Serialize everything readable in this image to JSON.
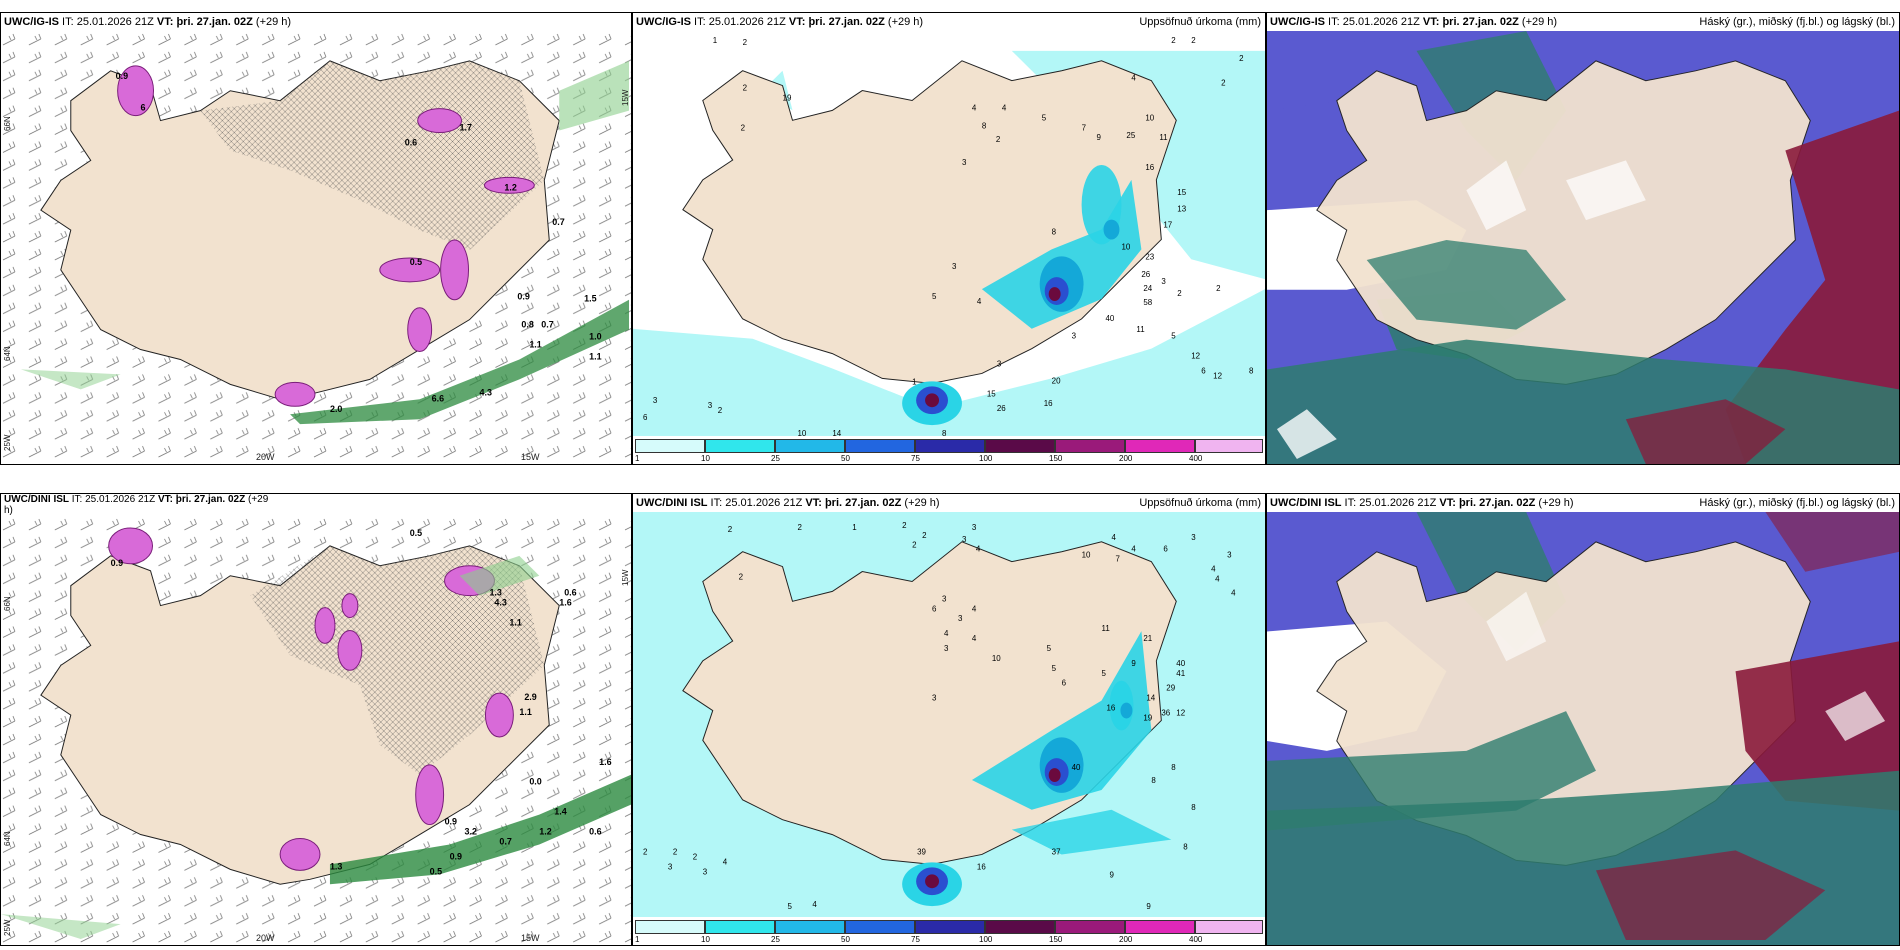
{
  "panels": [
    {
      "id": "top-left",
      "title_model": "UWC/IG-IS",
      "it_label": " IT: ",
      "it_value": "25.01.2026 21Z",
      "vt_label": " VT: ",
      "vt_value": "þri. 27.jan. 02Z",
      "lead": " (+29 h)",
      "right_title": "",
      "lon_labels": [
        "20W",
        "15W"
      ],
      "lat_labels": [
        "66N",
        "64N",
        "25W",
        "15W"
      ],
      "values": [
        "0.9",
        "6",
        "1.7",
        "0.6",
        "1.2",
        "0.7",
        "0.5",
        "0.9",
        "1.5",
        "1.1",
        "1.0",
        "0.8",
        "0.7",
        "1.1",
        "6.6",
        "2.0",
        "4.3"
      ]
    },
    {
      "id": "top-mid",
      "title_model": "UWC/IG-IS",
      "it_label": " IT: ",
      "it_value": "25.01.2026 21Z",
      "vt_label": " VT: ",
      "vt_value": "þri. 27.jan. 02Z",
      "lead": " (+29 h)",
      "right_title": "Uppsöfnuð úrkoma (mm)",
      "values": [
        "2",
        "2",
        "2",
        "1",
        "2",
        "2",
        "19",
        "2",
        "4",
        "4",
        "8",
        "5",
        "3",
        "2",
        "7",
        "9",
        "4",
        "2",
        "25",
        "10",
        "11",
        "16",
        "15",
        "13",
        "17",
        "23",
        "26",
        "24",
        "58",
        "40",
        "11",
        "2",
        "2",
        "3",
        "8",
        "10",
        "5",
        "12",
        "6",
        "8",
        "12",
        "3",
        "5",
        "4",
        "3",
        "3",
        "6",
        "3",
        "2",
        "10",
        "14",
        "15",
        "26",
        "16",
        "20",
        "3",
        "1",
        "8"
      ],
      "colorbar": [
        "1",
        "10",
        "25",
        "50",
        "75",
        "100",
        "150",
        "200",
        "400"
      ]
    },
    {
      "id": "top-right",
      "title_model": "UWC/IG-IS",
      "it_label": " IT: ",
      "it_value": "25.01.2026 21Z",
      "vt_label": " VT: ",
      "vt_value": "þri. 27.jan. 02Z",
      "lead": " (+29 h)",
      "right_title": "Háský (gr.), miðský (fj.bl.) og lágský (bl.)"
    },
    {
      "id": "bottom-left",
      "title_model": "UWC/DINI ISL",
      "it_label": " IT: ",
      "it_value": "25.01.2026 21Z",
      "vt_label": " VT: ",
      "vt_value": "þri. 27.jan. 02Z",
      "lead": " (+29",
      "lead2": "h)",
      "right_title": "",
      "lon_labels": [
        "20W",
        "15W"
      ],
      "lat_labels": [
        "66N",
        "64N",
        "25W",
        "15W"
      ],
      "values": [
        "0.5",
        "0.9",
        "1.3",
        "0.6",
        "1.6",
        "1.1",
        "2.9",
        "1.1",
        "0.9",
        "1.4",
        "1.2",
        "0.6",
        "0.7",
        "3.2",
        "0.9",
        "0.5",
        "1.3",
        "0.0",
        "1.6",
        "4.3"
      ]
    },
    {
      "id": "bottom-mid",
      "title_model": "UWC/DINI ISL",
      "it_label": " IT: ",
      "it_value": "25.01.2026 21Z",
      "vt_label": " VT: ",
      "vt_value": "þri. 27.jan. 02Z",
      "lead": " (+29 h)",
      "right_title": "Uppsöfnuð úrkoma (mm)",
      "values": [
        "2",
        "1",
        "2",
        "2",
        "2",
        "2",
        "2",
        "3",
        "3",
        "4",
        "3",
        "3",
        "4",
        "10",
        "4",
        "7",
        "4",
        "6",
        "3",
        "3",
        "4",
        "6",
        "4",
        "4",
        "4",
        "4",
        "3",
        "5",
        "10",
        "11",
        "5",
        "6",
        "5",
        "9",
        "19",
        "21",
        "41",
        "40",
        "29",
        "14",
        "36",
        "12",
        "8",
        "8",
        "8",
        "9",
        "9",
        "3",
        "2",
        "2",
        "3",
        "2",
        "3",
        "4",
        "5",
        "4",
        "39",
        "16",
        "37",
        "8",
        "16",
        "40"
      ],
      "colorbar": [
        "1",
        "10",
        "25",
        "50",
        "75",
        "100",
        "150",
        "200",
        "400"
      ]
    },
    {
      "id": "bottom-right",
      "title_model": "UWC/DINI ISL",
      "it_label": " IT: ",
      "it_value": "25.01.2026 21Z",
      "vt_label": " VT: ",
      "vt_value": "þri. 27.jan. 02Z",
      "lead": " (+29 h)",
      "right_title": "Háský (gr.), miðský (fj.bl.) og lágský (bl.)"
    }
  ],
  "colors": {
    "land": "#f2e2cf",
    "sea": "#ffffff",
    "precip_light": "#b3f7f7",
    "precip_mid": "#2ad4e6",
    "precip_strong": "#14a8d8",
    "precip_heavy": "#2a4fd0",
    "precip_extreme": "#6b0a3e",
    "ice_pink": "#d86ad8",
    "wind_green": "#2b8a3e",
    "cloud_high": "#2e7d6e",
    "cloud_mid": "#5a5ad0",
    "cloud_low": "#8a1a3a"
  },
  "colorbar_colors": [
    "#d6fbfb",
    "#30e6ec",
    "#22b8e8",
    "#2266e0",
    "#2a2aa8",
    "#5a0a48",
    "#9a1a7a",
    "#e028b8",
    "#f0b4f0"
  ]
}
